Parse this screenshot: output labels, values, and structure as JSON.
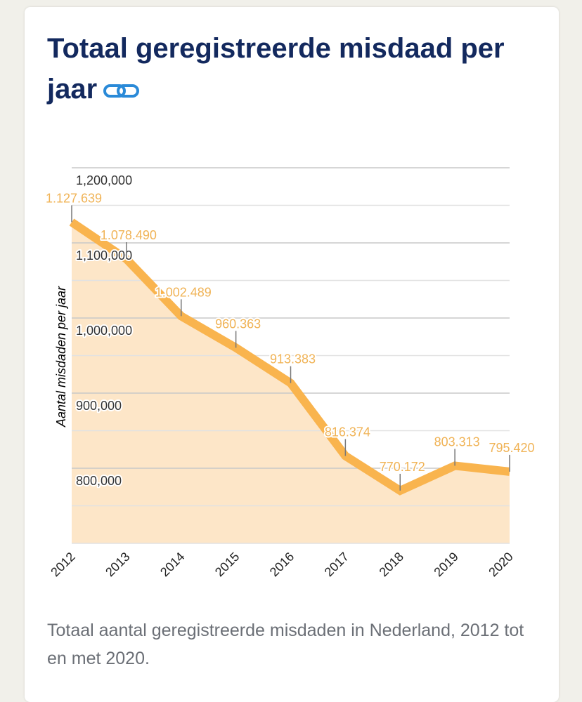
{
  "title": "Totaal geregistreerde misdaad per jaar",
  "caption": "Totaal aantal geregistreerde misdaden in Nederland, 2012 tot en met 2020.",
  "chart_data": {
    "type": "area",
    "y_label": "Aantal misdaden per jaar",
    "categories": [
      "2012",
      "2013",
      "2014",
      "2015",
      "2016",
      "2017",
      "2018",
      "2019",
      "2020"
    ],
    "values": [
      1127639,
      1078490,
      1002489,
      960363,
      913383,
      816374,
      770172,
      803313,
      795420
    ],
    "value_labels": [
      "1.127.639",
      "1.078.490",
      "1.002.489",
      "960.363",
      "913.383",
      "816.374",
      "770.172",
      "803.313",
      "795.420"
    ],
    "color": "#f9b44e",
    "fill": "#fde6c8",
    "label_color": "#f0b356",
    "ylim": [
      700000,
      1200000
    ],
    "yticks": [
      {
        "value": 800000,
        "label": "800,000"
      },
      {
        "value": 900000,
        "label": "900,000"
      },
      {
        "value": 1000000,
        "label": "1,000,000"
      },
      {
        "value": 1100000,
        "label": "1,100,000"
      },
      {
        "value": 1200000,
        "label": "1,200,000"
      }
    ],
    "grid": true
  }
}
